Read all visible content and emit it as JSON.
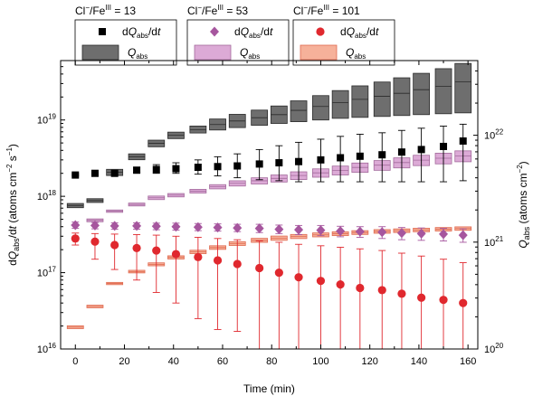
{
  "chart_data": {
    "type": "scatter",
    "xlabel": "Time (min)",
    "ylabel": "dQabs/dt (atoms cm−2 s−1)",
    "y2label": "Qabs (atoms cm−2)",
    "xlim": [
      -6,
      164
    ],
    "ylim": [
      1e+16,
      6e+19
    ],
    "y2lim": [
      1e+20,
      5e+22
    ],
    "yscale": "log",
    "y2scale": "log",
    "grid": false,
    "legend_placement": "top",
    "x_ticks": [
      0,
      20,
      40,
      60,
      80,
      100,
      120,
      140,
      160
    ],
    "y_tick_labels": [
      {
        "base": "10",
        "exp": "16",
        "value": 1e+16
      },
      {
        "base": "10",
        "exp": "17",
        "value": 1e+17
      },
      {
        "base": "10",
        "exp": "18",
        "value": 1e+18
      },
      {
        "base": "10",
        "exp": "19",
        "value": 1e+19
      }
    ],
    "y2_tick_labels": [
      {
        "base": "10",
        "exp": "20",
        "value": 1e+20
      },
      {
        "base": "10",
        "exp": "21",
        "value": 1e+21
      },
      {
        "base": "10",
        "exp": "22",
        "value": 1e+22
      }
    ],
    "groups": [
      {
        "title_main": "Cl",
        "title_sup1": "−",
        "title_mid": "/Fe",
        "title_sup2": "III",
        "title_tail": " = 13",
        "color": "#000000",
        "box_color": "#6e6e6e",
        "box_edge": "#2a2a2a",
        "marker": "square",
        "rate": {
          "x": [
            0,
            8,
            16,
            25,
            33,
            41,
            50,
            58,
            66,
            75,
            83,
            91,
            100,
            108,
            116,
            125,
            133,
            141,
            150,
            158
          ],
          "y": [
            1.9e+18,
            2e+18,
            2e+18,
            2.2e+18,
            2.25e+18,
            2.3e+18,
            2.4e+18,
            2.45e+18,
            2.5e+18,
            2.65e+18,
            2.75e+18,
            2.85e+18,
            3e+18,
            3.2e+18,
            3.35e+18,
            3.5e+18,
            3.8e+18,
            4.1e+18,
            4.5e+18,
            5.3e+18
          ],
          "err_lo": [
            1.85e+18,
            1.95e+18,
            1.9e+18,
            2.05e+18,
            2e+18,
            2e+18,
            1.95e+18,
            1.85e+18,
            1.75e+18,
            1.65e+18,
            1.6e+18,
            1.55e+18,
            1.55e+18,
            1.55e+18,
            1.55e+18,
            1.55e+18,
            1.55e+18,
            1.55e+18,
            1.55e+18,
            1.6e+18
          ],
          "err_hi": [
            1.95e+18,
            2.05e+18,
            2.15e+18,
            2.4e+18,
            2.6e+18,
            2.75e+18,
            3e+18,
            3.3e+18,
            3.6e+18,
            4.1e+18,
            4.6e+18,
            5.1e+18,
            5.6e+18,
            6.1e+18,
            6.5e+18,
            6.8e+18,
            7.3e+18,
            7.8e+18,
            8.3e+18,
            8.8e+18
          ]
        },
        "qabs": {
          "x": [
            0,
            8,
            16,
            25,
            33,
            41,
            50,
            58,
            66,
            75,
            83,
            91,
            100,
            108,
            116,
            125,
            133,
            141,
            150,
            158
          ],
          "y": [
            2.2e+21,
            2.45e+21,
            4.5e+21,
            6.3e+21,
            8.4e+21,
            1e+22,
            1.13e+22,
            1.26e+22,
            1.36e+22,
            1.46e+22,
            1.56e+22,
            1.71e+22,
            1.86e+22,
            2.02e+22,
            2.17e+22,
            2.32e+22,
            2.47e+22,
            2.67e+22,
            2.87e+22,
            3.17e+22
          ],
          "lo": [
            2.1e+21,
            2.35e+21,
            4.2e+21,
            5.9e+21,
            7.8e+21,
            9.3e+21,
            1.05e+22,
            1.12e+22,
            1.18e+22,
            1.24e+22,
            1.29e+22,
            1.34e+22,
            1.39e+22,
            1.44e+22,
            1.47e+22,
            1.5e+22,
            1.53e+22,
            1.56e+22,
            1.59e+22,
            1.62e+22
          ],
          "hi": [
            2.3e+21,
            2.55e+21,
            4.8e+21,
            6.7e+21,
            9e+21,
            1.07e+22,
            1.22e+22,
            1.42e+22,
            1.57e+22,
            1.72e+22,
            1.88e+22,
            2.1e+22,
            2.35e+22,
            2.62e+22,
            2.9e+22,
            3.15e+22,
            3.45e+22,
            3.8e+22,
            4.2e+22,
            4.7e+22
          ]
        },
        "legend_rate_label": "dQabs/dt",
        "legend_q_label": "Qabs"
      },
      {
        "title_main": "Cl",
        "title_sup1": "−",
        "title_mid": "/Fe",
        "title_sup2": "III",
        "title_tail": " = 53",
        "color": "#a6569e",
        "box_color": "#dcaad6",
        "box_edge": "#a36a9c",
        "marker": "diamond",
        "rate": {
          "x": [
            0,
            8,
            16,
            25,
            33,
            41,
            50,
            58,
            66,
            75,
            83,
            91,
            100,
            108,
            116,
            125,
            133,
            141,
            150,
            158
          ],
          "y": [
            4.2e+17,
            4.15e+17,
            4.1e+17,
            4.1e+17,
            4.05e+17,
            4e+17,
            3.95e+17,
            3.9e+17,
            3.85e+17,
            3.8e+17,
            3.7e+17,
            3.65e+17,
            3.6e+17,
            3.5e+17,
            3.45e+17,
            3.4e+17,
            3.3e+17,
            3.25e+17,
            3.2e+17,
            3.1e+17
          ],
          "err_lo": [
            3.8e+17,
            3.75e+17,
            3.7e+17,
            3.7e+17,
            3.65e+17,
            3.6e+17,
            3.55e+17,
            3.5e+17,
            3.45e+17,
            3.35e+17,
            3.25e+17,
            3.15e+17,
            3.05e+17,
            2.95e+17,
            2.9e+17,
            2.8e+17,
            2.7e+17,
            2.65e+17,
            2.6e+17,
            2.5e+17
          ],
          "err_hi": [
            4.6e+17,
            4.55e+17,
            4.5e+17,
            4.5e+17,
            4.45e+17,
            4.45e+17,
            4.4e+17,
            4.35e+17,
            4.3e+17,
            4.3e+17,
            4.2e+17,
            4.15e+17,
            4.15e+17,
            4.05e+17,
            4e+17,
            4e+17,
            3.9e+17,
            3.85e+17,
            3.8e+17,
            3.75e+17
          ]
        },
        "qabs": {
          "x": [
            8,
            16,
            25,
            33,
            41,
            50,
            58,
            66,
            75,
            83,
            91,
            100,
            108,
            116,
            125,
            133,
            141,
            150,
            158
          ],
          "y": [
            1.6e+21,
            1.95e+21,
            2.25e+21,
            2.6e+21,
            2.75e+21,
            3e+21,
            3.3e+21,
            3.55e+21,
            3.75e+21,
            3.95e+21,
            4.2e+21,
            4.45e+21,
            4.7e+21,
            5e+21,
            5.25e+21,
            5.55e+21,
            5.85e+21,
            6.1e+21,
            6.4e+21
          ],
          "lo": [
            1.55e+21,
            1.9e+21,
            2.18e+21,
            2.5e+21,
            2.65e+21,
            2.88e+21,
            3.15e+21,
            3.35e+21,
            3.5e+21,
            3.65e+21,
            3.85e+21,
            4.05e+21,
            4.25e+21,
            4.5e+21,
            4.7e+21,
            4.95e+21,
            5.2e+21,
            5.4e+21,
            5.65e+21
          ],
          "hi": [
            1.65e+21,
            2e+21,
            2.32e+21,
            2.7e+21,
            2.85e+21,
            3.12e+21,
            3.45e+21,
            3.75e+21,
            4e+21,
            4.25e+21,
            4.55e+21,
            4.85e+21,
            5.15e+21,
            5.5e+21,
            5.8e+21,
            6.15e+21,
            6.5e+21,
            6.8e+21,
            7.15e+21
          ]
        },
        "legend_rate_label": "dQabs/dt",
        "legend_q_label": "Qabs"
      },
      {
        "title_main": "Cl",
        "title_sup1": "−",
        "title_mid": "/Fe",
        "title_sup2": "III",
        "title_tail": " = 101",
        "color": "#e0282e",
        "box_color": "#f6b19a",
        "box_edge": "#e06a50",
        "marker": "circle",
        "rate": {
          "x": [
            0,
            8,
            16,
            25,
            33,
            41,
            50,
            58,
            66,
            75,
            83,
            91,
            100,
            108,
            116,
            125,
            133,
            141,
            150,
            158
          ],
          "y": [
            2.8e+17,
            2.55e+17,
            2.3e+17,
            2.1e+17,
            1.95e+17,
            1.75e+17,
            1.6e+17,
            1.45e+17,
            1.3e+17,
            1.15e+17,
            1e+17,
            8.7e+16,
            7.8e+16,
            7e+16,
            6.3e+16,
            5.9e+16,
            5.3e+16,
            4.7e+16,
            4.4e+16,
            4e+16
          ]
        },
        "rate_err_lo": [
          2.3e+17,
          1.5e+17,
          1.1e+17,
          8e+16,
          5.5e+16,
          4e+16,
          2.5e+16,
          1.8e+16,
          1.7e+16,
          1000000000000000.0,
          1000000000000000.0,
          1000000000000000.0,
          1000000000000000.0,
          1000000000000000.0,
          1000000000000000.0,
          1000000000000000.0,
          1000000000000000.0,
          1000000000000000.0,
          1000000000000000.0,
          1000000000000000.0
        ],
        "rate_err_hi": [
          3.3e+17,
          3.25e+17,
          3.2e+17,
          3.15e+17,
          3.1e+17,
          3e+17,
          2.9e+17,
          2.8e+17,
          2.7e+17,
          2.6e+17,
          2.5e+17,
          2.35e+17,
          2.25e+17,
          2.15e+17,
          2.05e+17,
          1.95e+17,
          1.8e+17,
          1.65e+17,
          1.5e+17,
          1.35e+17
        ],
        "qabs": {
          "x": [
            0,
            8,
            16,
            25,
            33,
            41,
            50,
            58,
            66,
            75,
            83,
            91,
            100,
            108,
            116,
            125,
            133,
            141,
            150,
            158
          ],
          "y": [
            1.6e+20,
            2.5e+20,
            4.1e+20,
            5.3e+20,
            6.2e+20,
            7.2e+20,
            8.1e+20,
            8.9e+20,
            9.7e+20,
            1.04e+21,
            1.09e+21,
            1.13e+21,
            1.17e+21,
            1.2e+21,
            1.23e+21,
            1.26e+21,
            1.28e+21,
            1.3e+21,
            1.32e+21,
            1.34e+21
          ],
          "lo": [
            1.55e+20,
            2.43e+20,
            4e+20,
            5.15e+20,
            6e+20,
            6.95e+20,
            7.8e+20,
            8.55e+20,
            9.3e+20,
            9.95e+20,
            1.04e+21,
            1.08e+21,
            1.12e+21,
            1.15e+21,
            1.18e+21,
            1.21e+21,
            1.23e+21,
            1.25e+21,
            1.27e+21,
            1.29e+21
          ],
          "hi": [
            1.65e+20,
            2.57e+20,
            4.2e+20,
            5.45e+20,
            6.4e+20,
            7.45e+20,
            8.4e+20,
            9.25e+20,
            1.01e+21,
            1.085e+21,
            1.14e+21,
            1.18e+21,
            1.22e+21,
            1.25e+21,
            1.28e+21,
            1.31e+21,
            1.33e+21,
            1.35e+21,
            1.37e+21,
            1.39e+21
          ]
        },
        "legend_rate_label": "dQabs/dt",
        "legend_q_label": "Qabs"
      }
    ]
  }
}
